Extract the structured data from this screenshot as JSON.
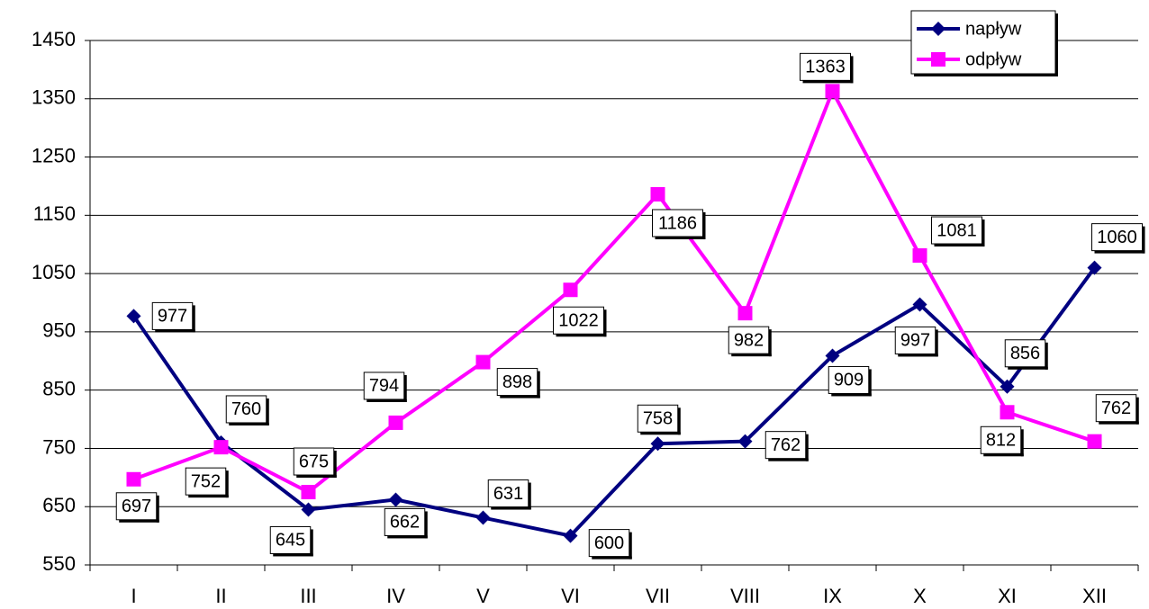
{
  "chart_data": {
    "type": "line",
    "categories": [
      "I",
      "II",
      "III",
      "IV",
      "V",
      "VI",
      "VII",
      "VIII",
      "IX",
      "X",
      "XI",
      "XII"
    ],
    "series": [
      {
        "name": "napływ",
        "color": "#000080",
        "marker": "diamond",
        "values": [
          977,
          760,
          645,
          662,
          631,
          600,
          758,
          762,
          909,
          997,
          856,
          1060
        ]
      },
      {
        "name": "odpływ",
        "color": "#ff00ff",
        "marker": "square",
        "values": [
          697,
          752,
          675,
          794,
          898,
          1022,
          1186,
          982,
          1363,
          1081,
          812,
          762
        ]
      }
    ],
    "ylim": [
      550,
      1450
    ],
    "yticks": [
      550,
      650,
      750,
      850,
      950,
      1050,
      1150,
      1250,
      1350,
      1450
    ],
    "grid": true,
    "legend": "top-right"
  }
}
